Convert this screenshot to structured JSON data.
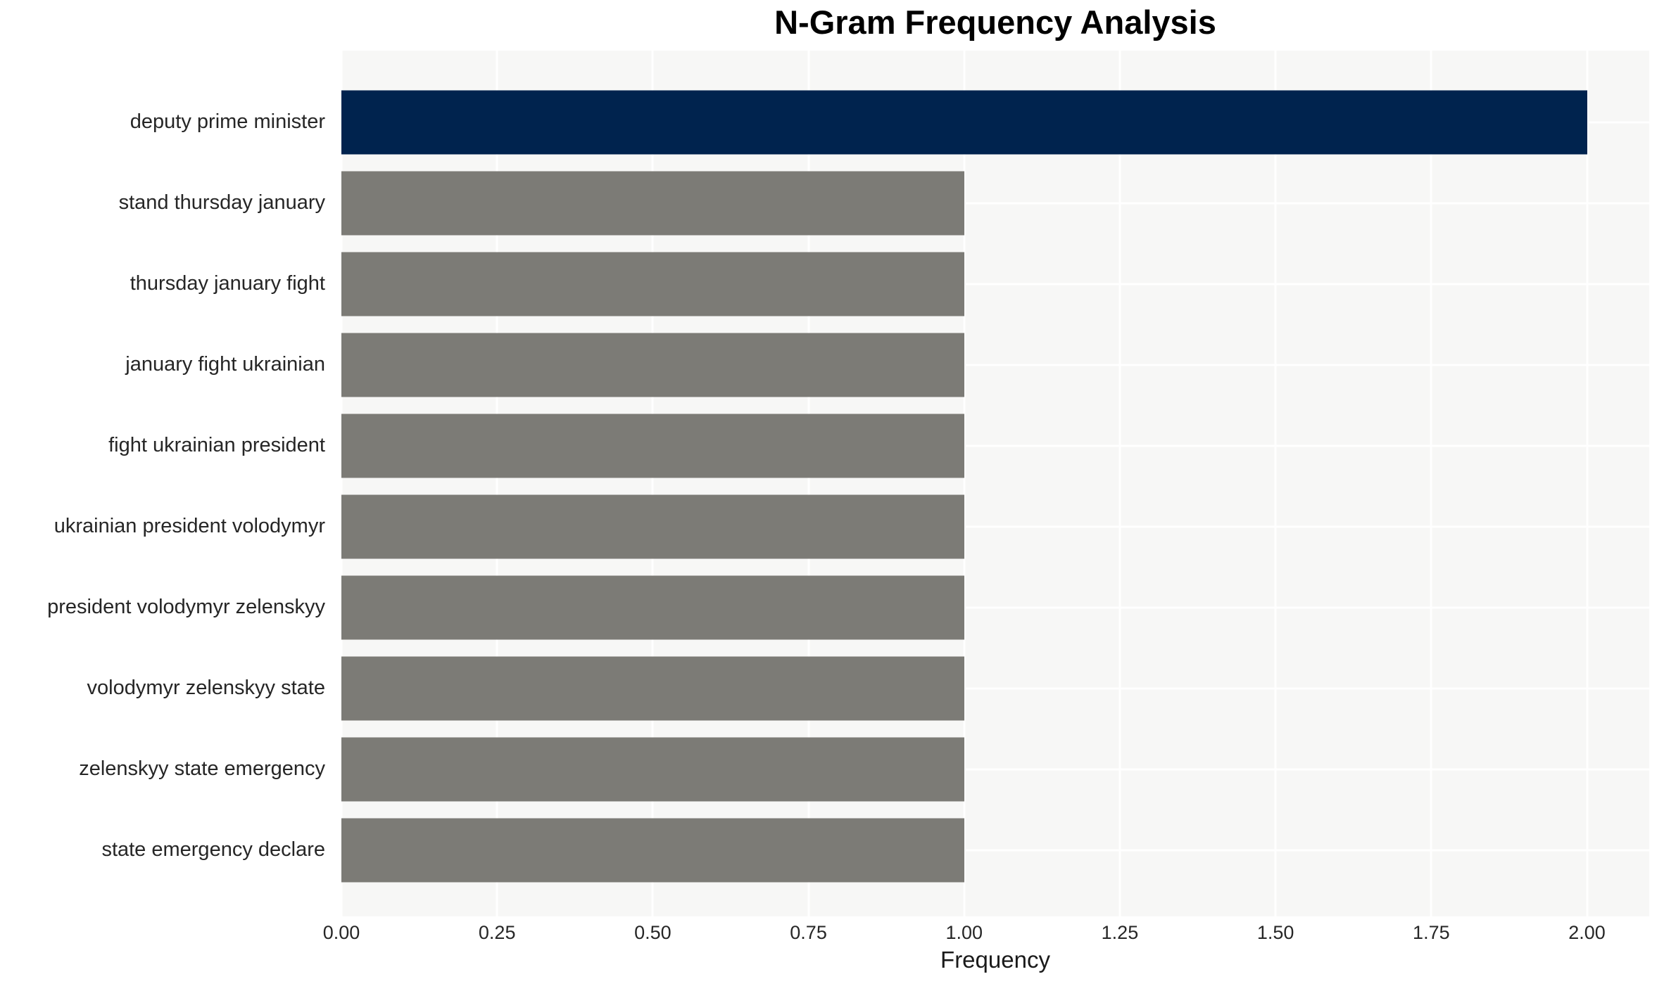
{
  "chart_data": {
    "type": "bar",
    "orientation": "horizontal",
    "title": "N-Gram Frequency Analysis",
    "xlabel": "Frequency",
    "ylabel": "",
    "categories": [
      "deputy prime minister",
      "stand thursday january",
      "thursday january fight",
      "january fight ukrainian",
      "fight ukrainian president",
      "ukrainian president volodymyr",
      "president volodymyr zelenskyy",
      "volodymyr zelenskyy state",
      "zelenskyy state emergency",
      "state emergency declare"
    ],
    "values": [
      2,
      1,
      1,
      1,
      1,
      1,
      1,
      1,
      1,
      1
    ],
    "bar_colors": [
      "#00234e",
      "#7c7b76",
      "#7c7b76",
      "#7c7b76",
      "#7c7b76",
      "#7c7b76",
      "#7c7b76",
      "#7c7b76",
      "#7c7b76",
      "#7c7b76"
    ],
    "xlim": [
      0,
      2.1
    ],
    "xticks": [
      0,
      0.25,
      0.5,
      0.75,
      1.0,
      1.25,
      1.5,
      1.75,
      2.0
    ],
    "xtick_labels": [
      "0.00",
      "0.25",
      "0.50",
      "0.75",
      "1.00",
      "1.25",
      "1.50",
      "1.75",
      "2.00"
    ],
    "grid": true,
    "legend_position": "none",
    "colors": {
      "highlight": "#00234e",
      "default_bar": "#7c7b76",
      "plot_background": "#f7f7f6",
      "gridline": "#ffffff",
      "axis_text": "#262626",
      "title_text": "#000000"
    }
  }
}
